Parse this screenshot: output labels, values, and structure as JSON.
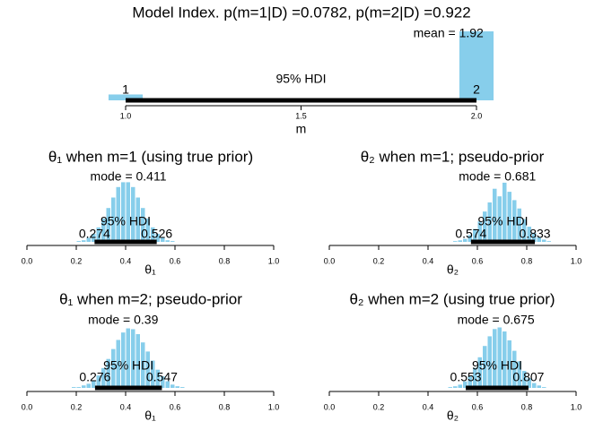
{
  "chart_data": [
    {
      "type": "histogram",
      "title": "Model Index. p(m=1|D) =0.0782, p(m=2|D) =0.922",
      "xlabel": "m",
      "bins": [
        0.95,
        1.05,
        1.95,
        2.05
      ],
      "counts": [
        0.0782,
        0,
        0.922
      ],
      "color": "#87ceeb",
      "xlim": [
        1,
        2
      ],
      "ylim": [
        0,
        0.922
      ],
      "xticks": [
        {
          "value": 1,
          "label": "1.0"
        },
        1.5,
        {
          "value": 2,
          "label": "2.0"
        }
      ],
      "hdi": [
        1,
        2
      ],
      "hdi_label": "95% HDI",
      "center": 1.92,
      "annotation": "mean = 1.92"
    },
    {
      "type": "histogram",
      "title": "θ₁ when m=1 (using true prior)",
      "xlabel": "θ₁",
      "bins": [
        0.16,
        0.18,
        0.2,
        0.22,
        0.24,
        0.26,
        0.28,
        0.3,
        0.32,
        0.34,
        0.36,
        0.38,
        0.4,
        0.42,
        0.44,
        0.46,
        0.48,
        0.5,
        0.52,
        0.54,
        0.56,
        0.58,
        0.6,
        0.62,
        0.64,
        0.66
      ],
      "counts": [
        0,
        0,
        1,
        2,
        5,
        10,
        18,
        29,
        42,
        55,
        68,
        74,
        74,
        68,
        55,
        42,
        29,
        18,
        10,
        5,
        2,
        1,
        0,
        0,
        0
      ],
      "color": "#87ceeb",
      "xlim": [
        0,
        1
      ],
      "ylim": [
        0,
        80
      ],
      "xticks": [
        {
          "value": 0,
          "label": "0.0"
        },
        0.2,
        0.4,
        0.6,
        0.8,
        {
          "value": 1,
          "label": "1.0"
        }
      ],
      "hdi": [
        0.274,
        0.526
      ],
      "hdi_label": "95% HDI",
      "center": 0.411,
      "annotation": "mode = 0.411"
    },
    {
      "type": "histogram",
      "title": "θ₂ when m=1; pseudo-prior",
      "xlabel": "θ₂",
      "bins": [
        0.46,
        0.48,
        0.5,
        0.52,
        0.54,
        0.56,
        0.58,
        0.6,
        0.62,
        0.64,
        0.66,
        0.68,
        0.7,
        0.72,
        0.74,
        0.76,
        0.78,
        0.8,
        0.82,
        0.84,
        0.86,
        0.88,
        0.9,
        0.92,
        0.94,
        0.96
      ],
      "counts": [
        0,
        0,
        1,
        2,
        4,
        9,
        17,
        27,
        40,
        52,
        70,
        60,
        78,
        66,
        55,
        44,
        30,
        20,
        12,
        6,
        3,
        1,
        0,
        0,
        0
      ],
      "color": "#87ceeb",
      "xlim": [
        0,
        1
      ],
      "ylim": [
        0,
        85
      ],
      "xticks": [
        {
          "value": 0,
          "label": "0.0"
        },
        0.2,
        0.4,
        0.6,
        0.8,
        {
          "value": 1,
          "label": "1.0"
        }
      ],
      "hdi": [
        0.574,
        0.833
      ],
      "hdi_label": "95% HDI",
      "center": 0.681,
      "annotation": "mode = 0.681"
    },
    {
      "type": "histogram",
      "title": "θ₁ when m=2; pseudo-prior",
      "xlabel": "θ₁",
      "bins": [
        0.16,
        0.18,
        0.2,
        0.22,
        0.24,
        0.26,
        0.28,
        0.3,
        0.32,
        0.34,
        0.36,
        0.38,
        0.4,
        0.42,
        0.44,
        0.46,
        0.48,
        0.5,
        0.52,
        0.54,
        0.56,
        0.58,
        0.6,
        0.62,
        0.64,
        0.66
      ],
      "counts": [
        0,
        1,
        1,
        3,
        5,
        9,
        15,
        24,
        35,
        47,
        58,
        67,
        72,
        71,
        65,
        55,
        44,
        33,
        22,
        14,
        8,
        4,
        2,
        1,
        0
      ],
      "color": "#87ceeb",
      "xlim": [
        0,
        1
      ],
      "ylim": [
        0,
        78
      ],
      "xticks": [
        {
          "value": 0,
          "label": "0.0"
        },
        0.2,
        0.4,
        0.6,
        0.8,
        {
          "value": 1,
          "label": "1.0"
        }
      ],
      "hdi": [
        0.276,
        0.547
      ],
      "hdi_label": "95% HDI",
      "center": 0.39,
      "annotation": "mode = 0.39"
    },
    {
      "type": "histogram",
      "title": "θ₂ when m=2 (using true prior)",
      "xlabel": "θ₂",
      "bins": [
        0.44,
        0.46,
        0.48,
        0.5,
        0.52,
        0.54,
        0.56,
        0.58,
        0.6,
        0.62,
        0.64,
        0.66,
        0.68,
        0.7,
        0.72,
        0.74,
        0.76,
        0.78,
        0.8,
        0.82,
        0.84,
        0.86,
        0.88,
        0.9,
        0.92,
        0.94
      ],
      "counts": [
        0,
        0,
        1,
        2,
        4,
        8,
        15,
        25,
        38,
        52,
        64,
        73,
        75,
        70,
        59,
        46,
        33,
        21,
        12,
        6,
        3,
        1,
        0,
        0,
        0
      ],
      "color": "#87ceeb",
      "xlim": [
        0,
        1
      ],
      "ylim": [
        0,
        80
      ],
      "xticks": [
        {
          "value": 0,
          "label": "0.0"
        },
        0.2,
        0.4,
        0.6,
        0.8,
        {
          "value": 1,
          "label": "1.0"
        }
      ],
      "hdi": [
        0.553,
        0.807
      ],
      "hdi_label": "95% HDI",
      "center": 0.675,
      "annotation": "mode = 0.675"
    }
  ]
}
